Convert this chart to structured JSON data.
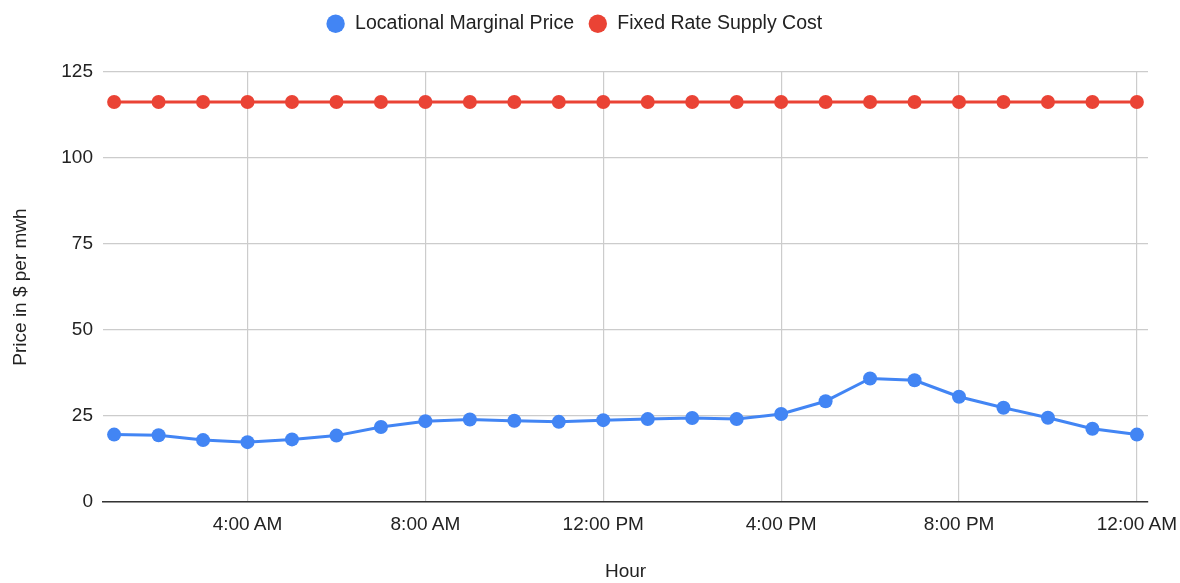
{
  "chart_data": {
    "type": "line",
    "xlabel": "Hour",
    "ylabel": "Price in $ per mwh",
    "x": [
      1,
      2,
      3,
      4,
      5,
      6,
      7,
      8,
      9,
      10,
      11,
      12,
      13,
      14,
      15,
      16,
      17,
      18,
      19,
      20,
      21,
      22,
      23,
      24
    ],
    "xlim": [
      0.75,
      24.25
    ],
    "xticks": [
      {
        "value": 4,
        "label": "4:00 AM"
      },
      {
        "value": 8,
        "label": "8:00 AM"
      },
      {
        "value": 12,
        "label": "12:00 PM"
      },
      {
        "value": 16,
        "label": "4:00 PM"
      },
      {
        "value": 20,
        "label": "8:00 PM"
      },
      {
        "value": 24,
        "label": "12:00 AM"
      }
    ],
    "ylim": [
      0,
      125
    ],
    "yticks": [
      0,
      25,
      50,
      75,
      100,
      125
    ],
    "grid": true,
    "legend": "top",
    "marker": "circle",
    "line_style": "solid",
    "series": [
      {
        "name": "Locational Marginal Price",
        "color": "#4285f4",
        "values": [
          19.6,
          19.4,
          18.0,
          17.4,
          18.2,
          19.3,
          21.8,
          23.5,
          24.0,
          23.6,
          23.3,
          23.8,
          24.1,
          24.4,
          24.1,
          25.6,
          29.3,
          35.9,
          35.4,
          30.6,
          27.4,
          24.5,
          21.3,
          19.6
        ]
      },
      {
        "name": "Fixed Rate Supply Cost",
        "color": "#ea4335",
        "values": [
          116.3,
          116.3,
          116.3,
          116.3,
          116.3,
          116.3,
          116.3,
          116.3,
          116.3,
          116.3,
          116.3,
          116.3,
          116.3,
          116.3,
          116.3,
          116.3,
          116.3,
          116.3,
          116.3,
          116.3,
          116.3,
          116.3,
          116.3,
          116.3
        ]
      }
    ]
  }
}
